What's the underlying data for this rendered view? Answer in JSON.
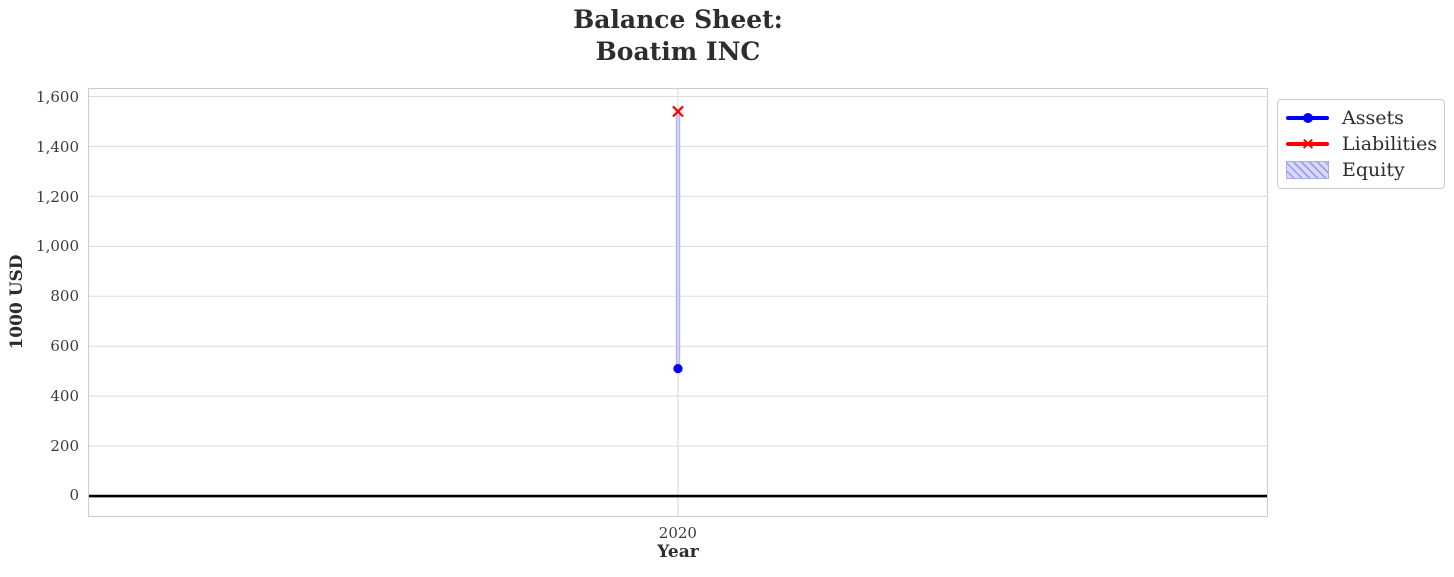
{
  "title": {
    "line1": "Balance Sheet:",
    "line2": "Boatim INC"
  },
  "chart_data": {
    "type": "line",
    "title": "Balance Sheet:\nBoatim INC",
    "xlabel": "Year",
    "ylabel": "1000 USD",
    "x": [
      2020
    ],
    "series": [
      {
        "name": "Assets",
        "type": "line",
        "marker": "circle",
        "color": "#0000ff",
        "values": [
          510
        ]
      },
      {
        "name": "Liabilities",
        "type": "line",
        "marker": "x",
        "color": "#ff0000",
        "values": [
          1540
        ]
      },
      {
        "name": "Equity",
        "type": "bar",
        "fill": "#d1d1fa",
        "hatch": "#9c9cee",
        "bar_span": [
          510,
          1540
        ],
        "values": [
          1030
        ]
      }
    ],
    "ylim": [
      -80,
      1630
    ],
    "yticks": [
      0,
      200,
      400,
      600,
      800,
      1000,
      1200,
      1400,
      1600
    ],
    "ytick_labels": [
      "0",
      "200",
      "400",
      "600",
      "800",
      "1,000",
      "1,200",
      "1,400",
      "1,600"
    ],
    "xticks": [
      2020
    ],
    "xtick_labels": [
      "2020"
    ],
    "grid": true,
    "zero_line": true,
    "legend_position": "outside-top-right"
  },
  "colors": {
    "assets": "#0000ff",
    "liabilities": "#ff0000",
    "equity_fill": "#d1d1fa",
    "equity_hatch": "#9c9cee",
    "grid": "#dcdcdc",
    "spine": "#cdcdcd",
    "zero_line": "#000000",
    "text": "#2d2d2d"
  }
}
